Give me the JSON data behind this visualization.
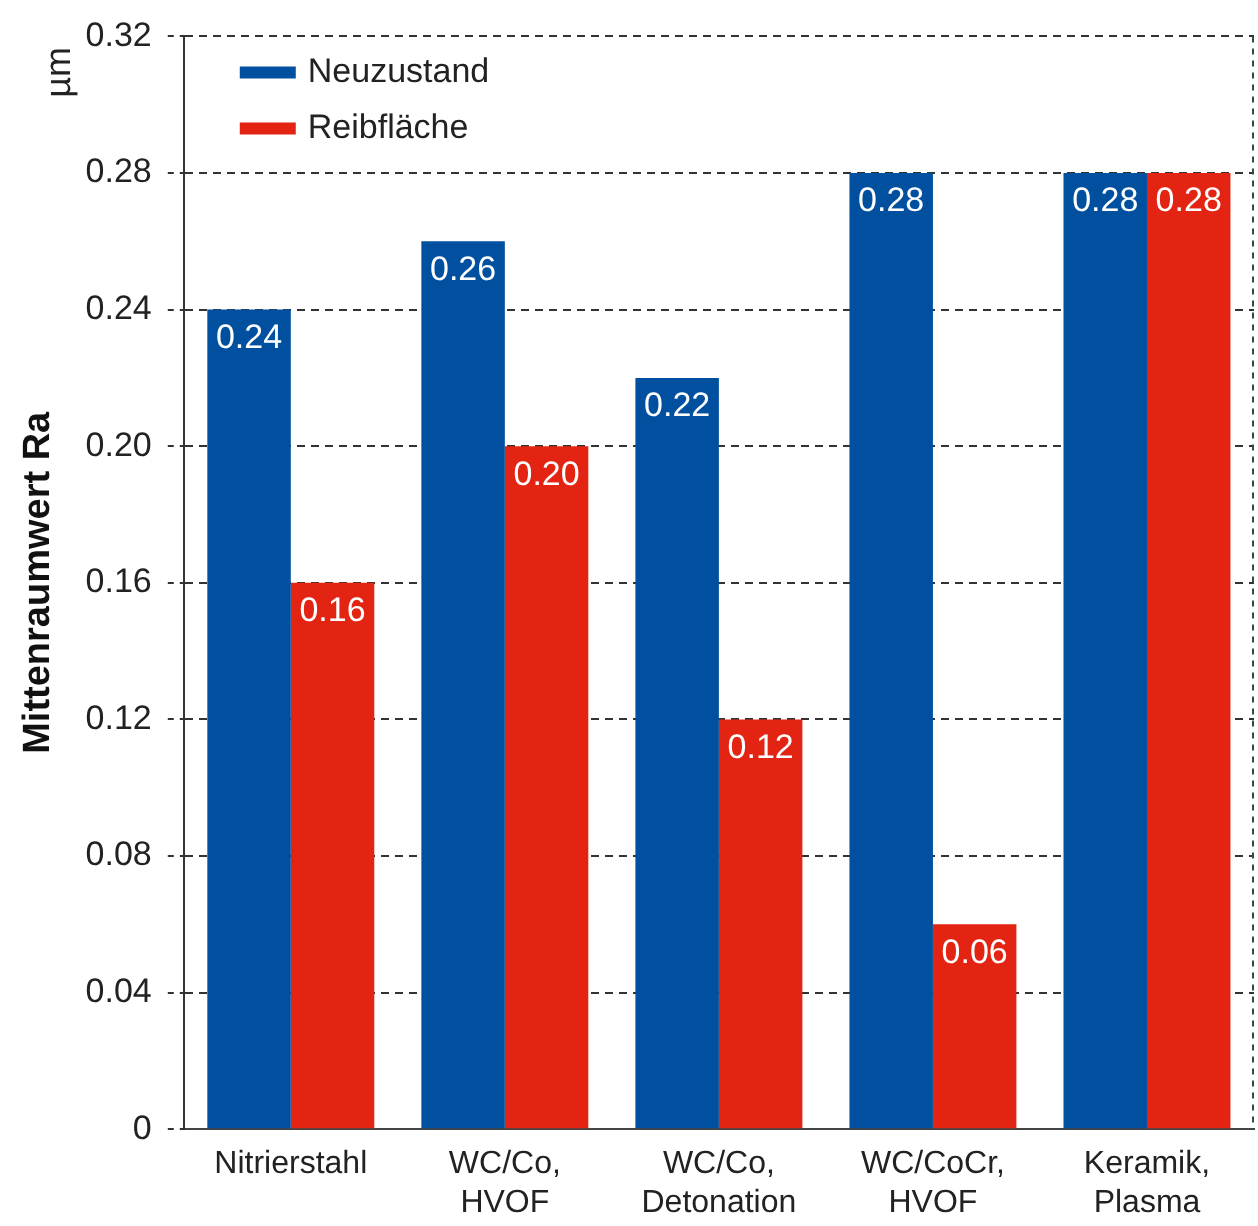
{
  "chart_data": {
    "type": "bar",
    "ylabel": "Mittenraumwert Ra",
    "annotations": [
      "µm"
    ],
    "categories": [
      "Nitrierstahl",
      "WC/Co, HVOF",
      "WC/Co, Detonation",
      "WC/CoCr, HVOF",
      "Keramik, Plasma"
    ],
    "series": [
      {
        "name": "Neuzustand",
        "color": "#00509f",
        "values": [
          0.24,
          0.26,
          0.22,
          0.28,
          0.28
        ],
        "value_labels": [
          "0.24",
          "0.26",
          "0.22",
          "0.28",
          "0.28"
        ]
      },
      {
        "name": "Reibfläche",
        "color": "#e32412",
        "values": [
          0.16,
          0.2,
          0.12,
          0.06,
          0.28
        ],
        "value_labels": [
          "0.16",
          "0.20",
          "0.12",
          "0.06",
          "0.28"
        ]
      }
    ],
    "ylim": [
      0,
      0.32
    ],
    "yticks": [
      0,
      0.04,
      0.08,
      0.12,
      0.16,
      {
        "value": 0.2,
        "label": "0.20"
      },
      0.24,
      0.28,
      {
        "value": 0.32,
        "label": "0.32"
      }
    ],
    "grid": "y",
    "legend": "top left"
  }
}
